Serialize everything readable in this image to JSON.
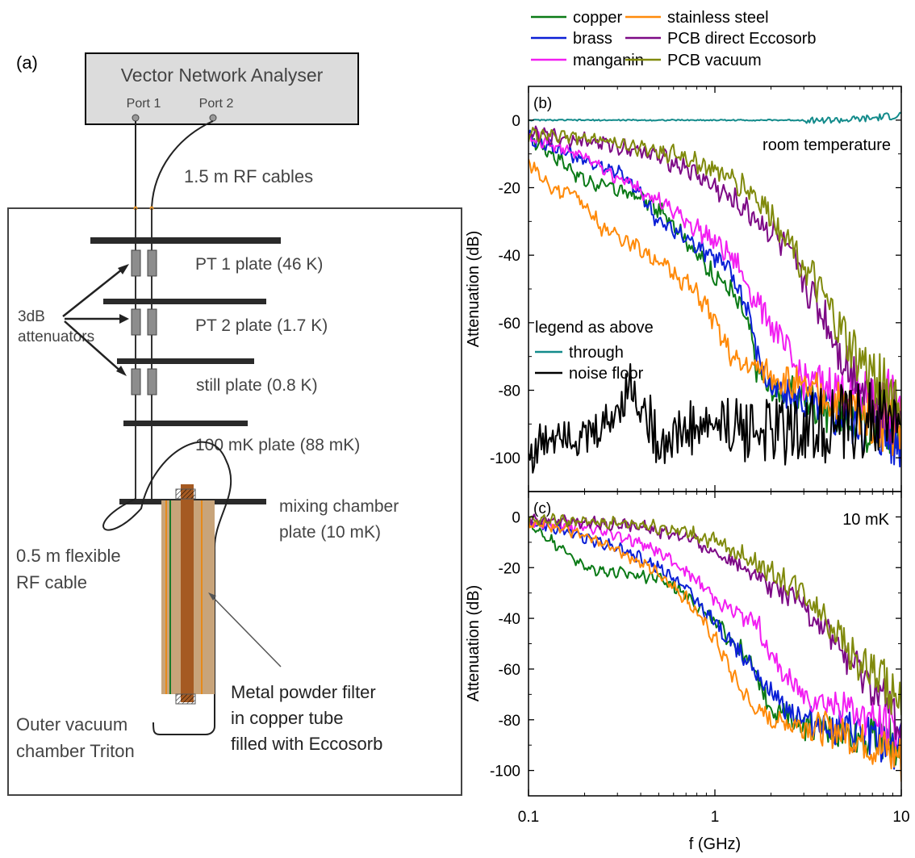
{
  "panel_a": {
    "label": "(a)",
    "vna": {
      "title": "Vector Network Analyser",
      "port1": "Port 1",
      "port2": "Port 2"
    },
    "rf_cables": "1.5 m RF cables",
    "plates": [
      "PT 1 plate (46 K)",
      "PT 2 plate (1.7 K)",
      "still plate  (0.8 K)",
      "100 mK plate (88 mK)"
    ],
    "mixing_plate": [
      "mixing chamber",
      "plate (10 mK)"
    ],
    "attenuators": [
      "3dB",
      "attenuators"
    ],
    "flex_cable": [
      "0.5 m flexible",
      "RF cable"
    ],
    "filter": [
      "Metal powder filter",
      "in copper tube",
      "filled with Eccosorb"
    ],
    "ovc": [
      "Outer vacuum",
      "chamber Triton"
    ]
  },
  "legend": [
    {
      "name": "copper",
      "color": "#0a7a16"
    },
    {
      "name": "brass",
      "color": "#0b1fd6"
    },
    {
      "name": "manganin",
      "color": "#f21ef2"
    },
    {
      "name": "stainless steel",
      "color": "#ff8a0a"
    },
    {
      "name": "PCB direct Eccosorb",
      "color": "#7d0a86"
    },
    {
      "name": "PCB vacuum",
      "color": "#808a0d"
    }
  ],
  "chart_data": [
    {
      "type": "line",
      "panel": "(b)",
      "annotation": "room temperature",
      "xscale": "log",
      "xlim": [
        0.1,
        10
      ],
      "ylim": [
        -110,
        10
      ],
      "xticks": [
        "0.1",
        "1",
        "10"
      ],
      "yticks": [
        0,
        -20,
        -40,
        -60,
        -80,
        -100
      ],
      "xlabel": "",
      "ylabel": "Attenuation (dB)",
      "inline_legend": {
        "title": "legend as above",
        "through": "through",
        "noise": "noise floor"
      },
      "series": [
        {
          "name": "copper",
          "color": "#0a7a16",
          "x": [
            0.1,
            0.15,
            0.2,
            0.28,
            0.4,
            0.6,
            0.8,
            1.0,
            1.2,
            1.5,
            1.7,
            2.0,
            3.0,
            5.0,
            10
          ],
          "y": [
            -5,
            -12,
            -18,
            -20,
            -23,
            -30,
            -40,
            -46,
            -50,
            -60,
            -75,
            -80,
            -82,
            -88,
            -92
          ]
        },
        {
          "name": "brass",
          "color": "#0b1fd6",
          "x": [
            0.1,
            0.15,
            0.2,
            0.3,
            0.4,
            0.5,
            0.7,
            1.0,
            1.2,
            1.5,
            1.7,
            2.0,
            3.0,
            5.0,
            10
          ],
          "y": [
            -5,
            -9,
            -12,
            -15,
            -22,
            -30,
            -35,
            -40,
            -45,
            -55,
            -70,
            -80,
            -83,
            -88,
            -95
          ]
        },
        {
          "name": "manganin",
          "color": "#f21ef2",
          "x": [
            0.1,
            0.15,
            0.2,
            0.3,
            0.45,
            0.6,
            0.8,
            1.0,
            1.3,
            1.6,
            2.0,
            2.5,
            3.0,
            5.0,
            10
          ],
          "y": [
            -5,
            -8,
            -11,
            -17,
            -22,
            -27,
            -32,
            -36,
            -42,
            -52,
            -60,
            -70,
            -77,
            -80,
            -85
          ]
        },
        {
          "name": "stainless steel",
          "color": "#ff8a0a",
          "x": [
            0.1,
            0.13,
            0.18,
            0.25,
            0.35,
            0.5,
            0.7,
            0.9,
            1.1,
            1.3,
            1.6,
            2.0,
            3.0,
            5.0,
            10
          ],
          "y": [
            -12,
            -20,
            -22,
            -32,
            -36,
            -42,
            -48,
            -55,
            -65,
            -72,
            -73,
            -75,
            -80,
            -84,
            -90
          ]
        },
        {
          "name": "PCB direct Eccosorb",
          "color": "#7d0a86",
          "x": [
            0.1,
            0.2,
            0.4,
            0.7,
            1.0,
            1.5,
            2.0,
            2.5,
            3.0,
            4.0,
            5.0,
            6.0,
            8.0,
            10
          ],
          "y": [
            -4,
            -6,
            -9,
            -14,
            -20,
            -27,
            -33,
            -40,
            -48,
            -60,
            -72,
            -78,
            -85,
            -90
          ]
        },
        {
          "name": "PCB vacuum",
          "color": "#808a0d",
          "x": [
            0.1,
            0.2,
            0.4,
            0.7,
            1.0,
            1.5,
            2.0,
            2.5,
            3.0,
            4.0,
            5.0,
            6.0,
            8.0,
            10
          ],
          "y": [
            -4,
            -5,
            -8,
            -11,
            -15,
            -20,
            -28,
            -35,
            -43,
            -55,
            -65,
            -72,
            -78,
            -84
          ]
        },
        {
          "name": "through",
          "color": "#138b8b",
          "x": [
            0.1,
            1,
            3,
            5,
            7,
            10
          ],
          "y": [
            0,
            0,
            0,
            0,
            0.5,
            1.5
          ]
        },
        {
          "name": "noise floor",
          "color": "#000000",
          "x": [
            0.1,
            0.15,
            0.2,
            0.28,
            0.35,
            0.5,
            0.7,
            1.0,
            2.0,
            5.0,
            10
          ],
          "y": [
            -100,
            -90,
            -95,
            -88,
            -78,
            -95,
            -92,
            -90,
            -92,
            -90,
            -88
          ]
        }
      ]
    },
    {
      "type": "line",
      "panel": "(c)",
      "annotation": "10 mK",
      "xscale": "log",
      "xlim": [
        0.1,
        10
      ],
      "ylim": [
        -110,
        10
      ],
      "xticks": [
        "0.1",
        "1",
        "10"
      ],
      "yticks": [
        0,
        -20,
        -40,
        -60,
        -80,
        -100
      ],
      "xlabel": "f (GHz)",
      "ylabel": "Attenuation (dB)",
      "series": [
        {
          "name": "copper",
          "color": "#0a7a16",
          "x": [
            0.1,
            0.15,
            0.2,
            0.3,
            0.5,
            0.7,
            1.0,
            1.3,
            1.6,
            2.0,
            3.0,
            5.0,
            10
          ],
          "y": [
            -3,
            -12,
            -20,
            -22,
            -24,
            -30,
            -42,
            -50,
            -60,
            -75,
            -82,
            -85,
            -90
          ]
        },
        {
          "name": "brass",
          "color": "#0b1fd6",
          "x": [
            0.1,
            0.15,
            0.2,
            0.3,
            0.5,
            0.7,
            1.0,
            1.3,
            1.6,
            2.0,
            3.0,
            5.0,
            10
          ],
          "y": [
            -2,
            -5,
            -8,
            -12,
            -20,
            -28,
            -42,
            -52,
            -58,
            -70,
            -80,
            -85,
            -90
          ]
        },
        {
          "name": "manganin",
          "color": "#f21ef2",
          "x": [
            0.1,
            0.2,
            0.3,
            0.45,
            0.6,
            0.8,
            1.0,
            1.3,
            1.7,
            2.0,
            2.5,
            3.0,
            5.0,
            10
          ],
          "y": [
            -2,
            -4,
            -7,
            -12,
            -18,
            -25,
            -32,
            -38,
            -42,
            -55,
            -65,
            -70,
            -75,
            -85
          ]
        },
        {
          "name": "stainless steel",
          "color": "#ff8a0a",
          "x": [
            0.1,
            0.15,
            0.2,
            0.3,
            0.5,
            0.7,
            1.0,
            1.3,
            1.6,
            2.0,
            3.0,
            5.0,
            10
          ],
          "y": [
            -2,
            -4,
            -8,
            -13,
            -22,
            -32,
            -48,
            -65,
            -75,
            -80,
            -82,
            -85,
            -95
          ]
        },
        {
          "name": "PCB direct Eccosorb",
          "color": "#7d0a86",
          "x": [
            0.1,
            0.2,
            0.4,
            0.7,
            1.0,
            1.5,
            2.0,
            3.0,
            4.0,
            5.0,
            6.0,
            8.0,
            10
          ],
          "y": [
            -1,
            -2,
            -4,
            -8,
            -14,
            -20,
            -27,
            -35,
            -45,
            -55,
            -62,
            -72,
            -85
          ]
        },
        {
          "name": "PCB vacuum",
          "color": "#808a0d",
          "x": [
            0.1,
            0.2,
            0.4,
            0.7,
            1.0,
            1.5,
            2.0,
            3.0,
            4.0,
            5.0,
            6.0,
            8.0,
            10
          ],
          "y": [
            -1,
            -2,
            -3,
            -6,
            -10,
            -16,
            -22,
            -30,
            -40,
            -50,
            -58,
            -65,
            -75
          ]
        }
      ]
    }
  ]
}
